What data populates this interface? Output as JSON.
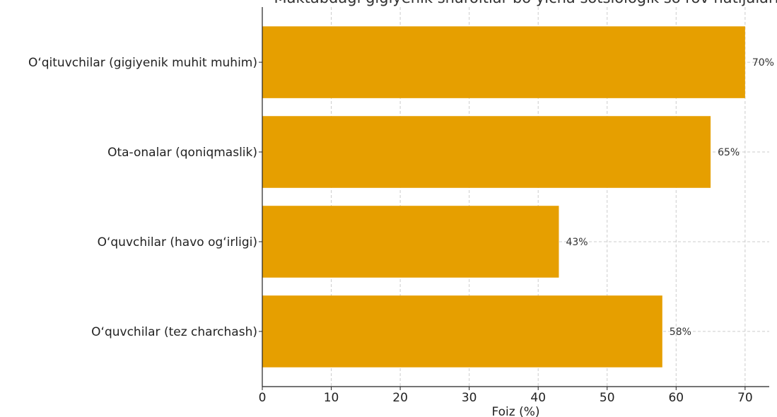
{
  "chart_data": {
    "type": "bar",
    "orientation": "horizontal",
    "title": "Maktabdagi gigiyenik sharoitlar bo‘yicha sotsiologik so‘rov natijalari",
    "xlabel": "Foiz (%)",
    "ylabel": "",
    "categories": [
      "O‘quvchilar (tez charchash)",
      "O‘quvchilar (havo og‘irligi)",
      "Ota-onalar (qoniqmaslik)",
      "O‘qituvchilar (gigiyenik muhit muhim)"
    ],
    "values": [
      58,
      43,
      65,
      70
    ],
    "data_labels": [
      "58%",
      "43%",
      "65%",
      "70%"
    ],
    "xlim": [
      0,
      73.5
    ],
    "xticks": [
      0,
      10,
      20,
      30,
      40,
      50,
      60,
      70
    ],
    "grid": true,
    "bar_color": "#e69f00",
    "grid_color": "#cccccc"
  }
}
